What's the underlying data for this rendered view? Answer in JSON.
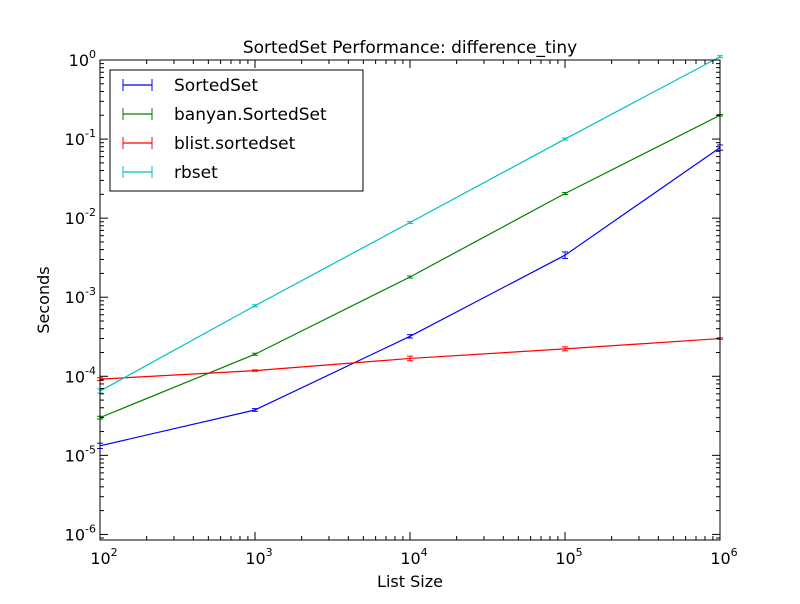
{
  "chart_data": {
    "type": "line",
    "title": "SortedSet Performance: difference_tiny",
    "xlabel": "List Size",
    "ylabel": "Seconds",
    "xscale": "log",
    "yscale": "log",
    "xlim": [
      100,
      1000000
    ],
    "ylim": [
      8.5e-07,
      1
    ],
    "x": [
      100,
      1000,
      10000,
      100000,
      1000000
    ],
    "x_ticks": [
      {
        "base": "10",
        "exp": "2"
      },
      {
        "base": "10",
        "exp": "3"
      },
      {
        "base": "10",
        "exp": "4"
      },
      {
        "base": "10",
        "exp": "5"
      },
      {
        "base": "10",
        "exp": "6"
      }
    ],
    "y_ticks": [
      {
        "base": "10",
        "exp": "-6"
      },
      {
        "base": "10",
        "exp": "-5"
      },
      {
        "base": "10",
        "exp": "-4"
      },
      {
        "base": "10",
        "exp": "-3"
      },
      {
        "base": "10",
        "exp": "-2"
      },
      {
        "base": "10",
        "exp": "-1"
      },
      {
        "base": "10",
        "exp": "0"
      }
    ],
    "grid": false,
    "legend_position": "top-left",
    "series": [
      {
        "name": "SortedSet",
        "color": "#0000ff",
        "values": [
          1.32e-05,
          3.75e-05,
          0.00032,
          0.0034,
          0.078
        ],
        "errors": [
          0.08,
          0.04,
          0.05,
          0.1,
          0.08
        ]
      },
      {
        "name": "banyan.SortedSet",
        "color": "#008000",
        "values": [
          3e-05,
          0.00019,
          0.0018,
          0.0205,
          0.2
        ],
        "errors": [
          0.04,
          0.03,
          0.03,
          0.03,
          0.02
        ]
      },
      {
        "name": "blist.sortedset",
        "color": "#ff0000",
        "values": [
          9.2e-05,
          0.000118,
          0.000168,
          0.000222,
          0.0003
        ],
        "errors": [
          0.04,
          0.02,
          0.07,
          0.06,
          0.02
        ]
      },
      {
        "name": "rbset",
        "color": "#00bfbf",
        "values": [
          6.5e-05,
          0.00078,
          0.0088,
          0.1,
          1.1
        ],
        "errors": [
          0.06,
          0.03,
          0.03,
          0.03,
          0.03
        ]
      }
    ]
  }
}
